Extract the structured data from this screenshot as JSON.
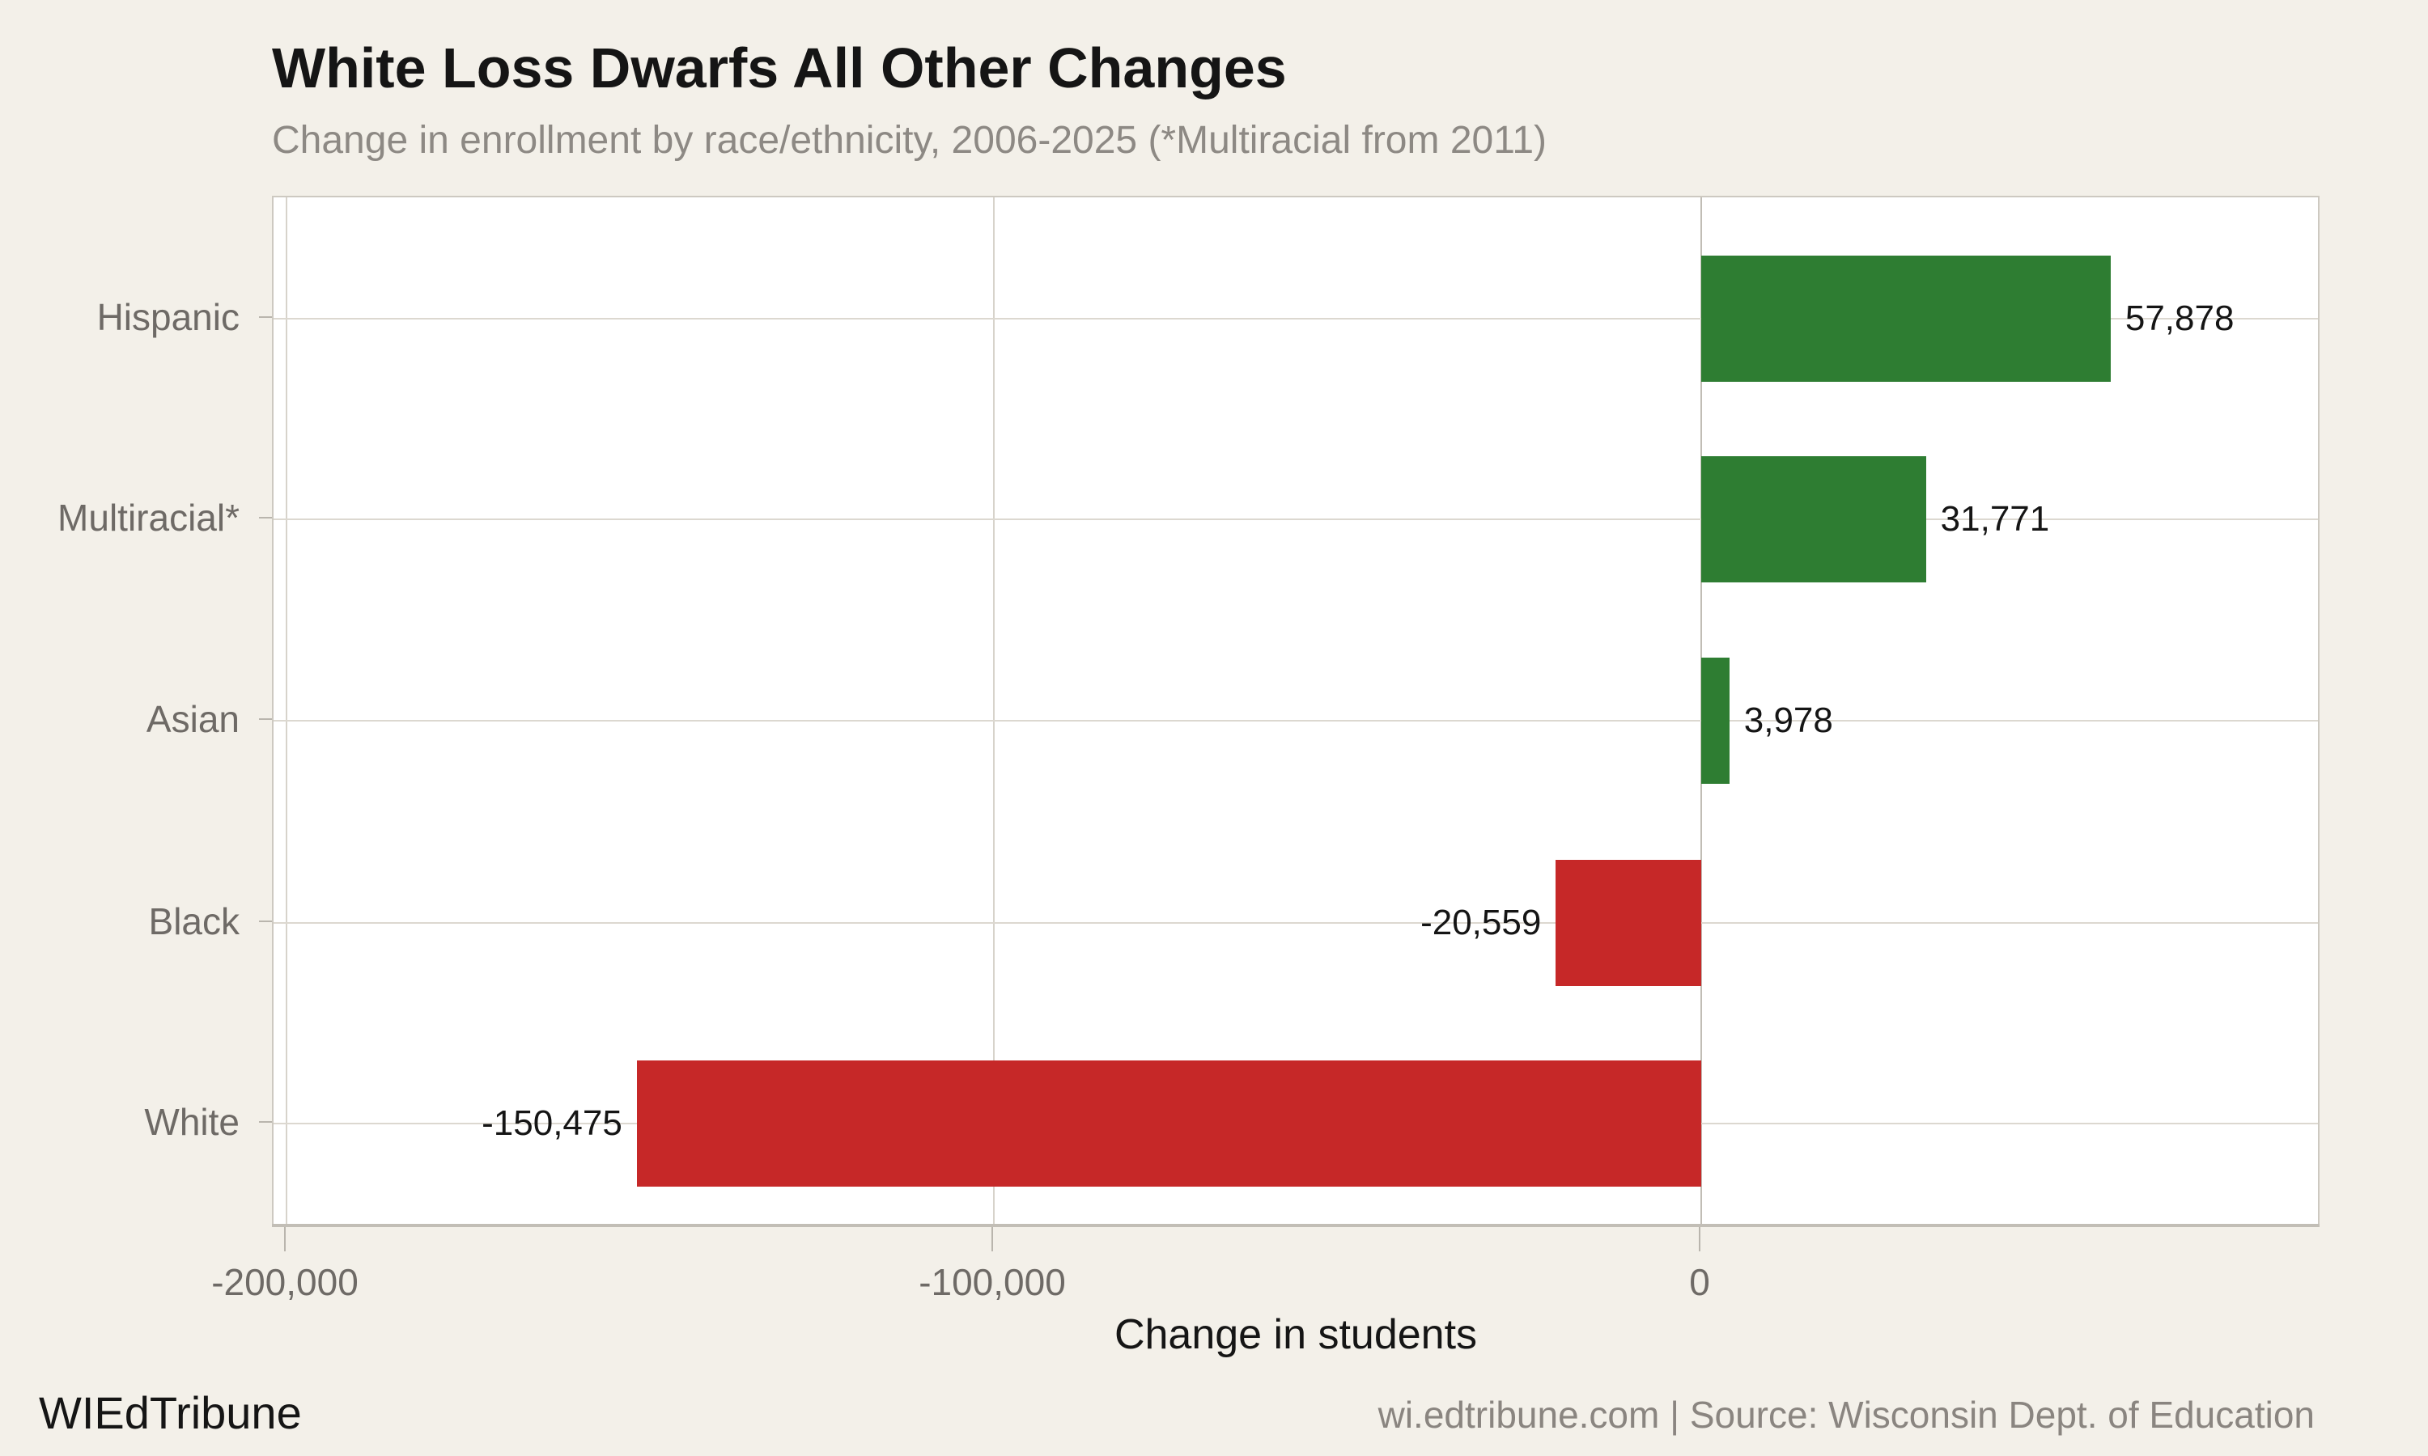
{
  "page": {
    "background_color": "#f3f0e9",
    "plot_background_color": "#ffffff"
  },
  "chart_data": {
    "type": "bar",
    "orientation": "horizontal",
    "title": "White Loss Dwarfs All Other Changes",
    "subtitle": "Change in enrollment by race/ethnicity, 2006-2025 (*Multiracial from 2011)",
    "categories": [
      "Hispanic",
      "Multiracial*",
      "Asian",
      "Black",
      "White"
    ],
    "values": [
      57878,
      31771,
      3978,
      -20559,
      -150475
    ],
    "value_labels": [
      "57,878",
      "31,771",
      "3,978",
      "-20,559",
      "-150,475"
    ],
    "xlabel": "Change in students",
    "x_ticks": [
      -200000,
      -100000,
      0
    ],
    "x_tick_labels": [
      "-200,000",
      "-100,000",
      "0"
    ],
    "xlim": [
      -202000,
      88000
    ],
    "grid": true,
    "legend": false,
    "positive_color": "#2e7d32",
    "negative_color": "#c62828"
  },
  "footer": {
    "brand": "WIEdTribune",
    "source": "wi.edtribune.com | Source: Wisconsin Dept. of Education"
  }
}
